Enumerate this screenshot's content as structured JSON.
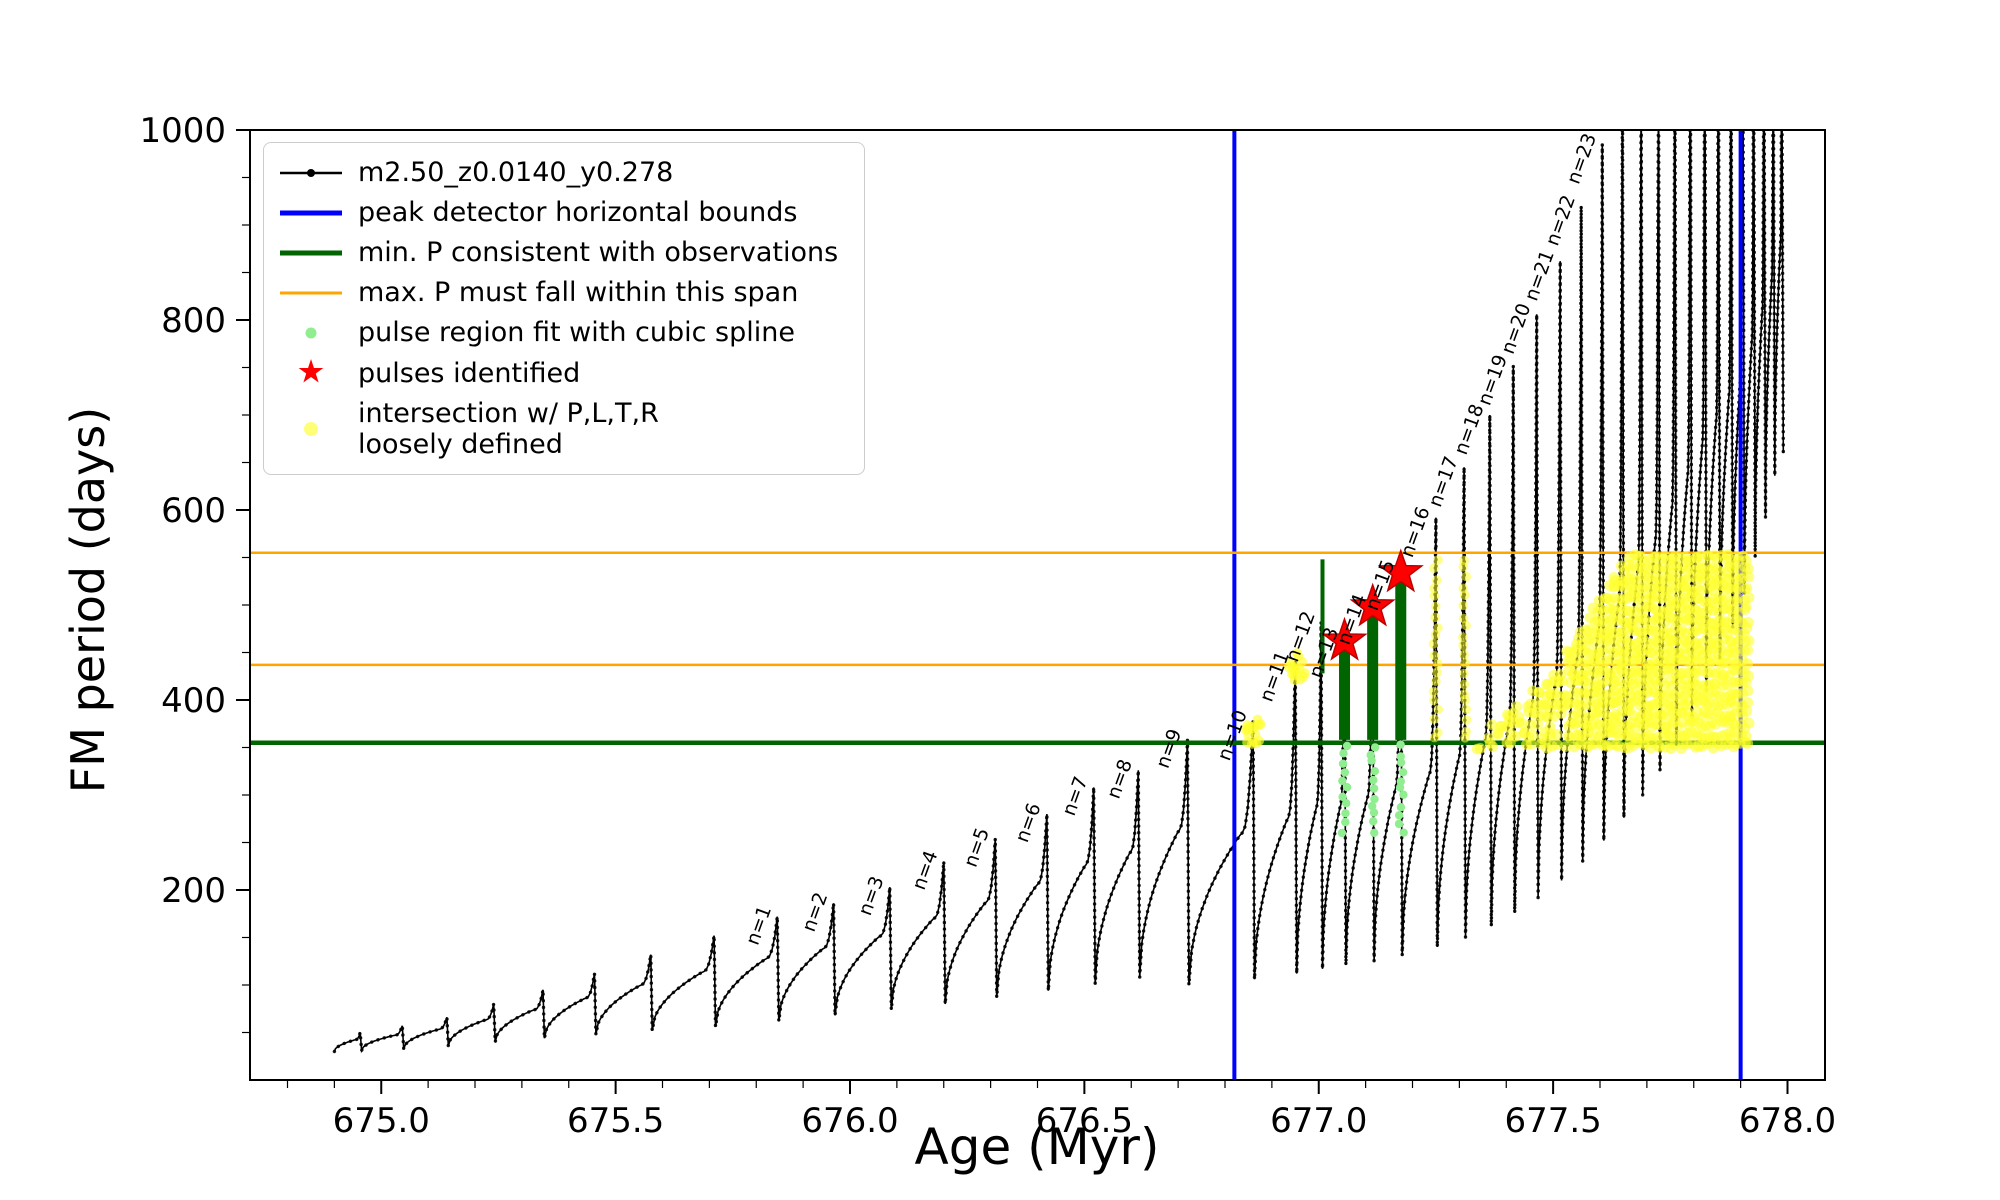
{
  "legend": {
    "entries": [
      {
        "label": "m2.50_z0.0140_y0.278",
        "marker": "line-dot",
        "color": "#000000"
      },
      {
        "label": "peak detector horizontal bounds",
        "marker": "line",
        "color": "#0000ff"
      },
      {
        "label": "min. P consistent with observations",
        "marker": "line",
        "color": "#006400"
      },
      {
        "label": "max. P must fall within this span",
        "marker": "line",
        "color": "#ffa500"
      },
      {
        "label": "pulse region fit with cubic spline",
        "marker": "dot",
        "color": "#90ee90"
      },
      {
        "label": "pulses identified",
        "marker": "star",
        "color": "#ff0000"
      },
      {
        "label": "intersection w/ P,L,T,R",
        "label2": "loosely defined",
        "marker": "dot",
        "color": "#ffff55"
      }
    ]
  },
  "chart_data": {
    "type": "line",
    "title": "",
    "xlabel": "Age (Myr)",
    "ylabel": "FM period (days)",
    "xlim": [
      674.72,
      678.08
    ],
    "ylim": [
      0,
      1000
    ],
    "grid": false,
    "legend_position": "upper left",
    "xticks": [
      {
        "v": 675.0,
        "label": "675.0"
      },
      {
        "v": 675.5,
        "label": "675.5"
      },
      {
        "v": 676.0,
        "label": "676.0"
      },
      {
        "v": 676.5,
        "label": "676.5"
      },
      {
        "v": 677.0,
        "label": "677.0"
      },
      {
        "v": 677.5,
        "label": "677.5"
      },
      {
        "v": 678.0,
        "label": "678.0"
      }
    ],
    "yticks": [
      {
        "v": 200,
        "label": "200"
      },
      {
        "v": 400,
        "label": "400"
      },
      {
        "v": 600,
        "label": "600"
      },
      {
        "v": 800,
        "label": "800"
      },
      {
        "v": 1000,
        "label": "1000"
      }
    ],
    "x_minor_step": 0.1,
    "y_minor_step": 50,
    "series": {
      "label": "m2.50_z0.0140_y0.278",
      "color": "#000000",
      "x_start": 674.9,
      "cycles": [
        {
          "x": 674.955,
          "peak": 50,
          "trough": 30
        },
        {
          "x": 675.045,
          "peak": 57,
          "trough": 31
        },
        {
          "x": 675.14,
          "peak": 66,
          "trough": 33
        },
        {
          "x": 675.24,
          "peak": 80,
          "trough": 36
        },
        {
          "x": 675.345,
          "peak": 95,
          "trough": 40
        },
        {
          "x": 675.455,
          "peak": 112,
          "trough": 44
        },
        {
          "x": 675.575,
          "peak": 132,
          "trough": 48
        },
        {
          "x": 675.71,
          "peak": 152,
          "trough": 52
        },
        {
          "x": 675.845,
          "peak": 172,
          "trough": 56,
          "n": 1
        },
        {
          "x": 675.965,
          "peak": 186,
          "trough": 62,
          "n": 2
        },
        {
          "x": 676.085,
          "peak": 203,
          "trough": 68,
          "n": 3
        },
        {
          "x": 676.2,
          "peak": 230,
          "trough": 74,
          "n": 4
        },
        {
          "x": 676.31,
          "peak": 254,
          "trough": 80,
          "n": 5
        },
        {
          "x": 676.42,
          "peak": 280,
          "trough": 87,
          "n": 6
        },
        {
          "x": 676.52,
          "peak": 308,
          "trough": 94,
          "n": 7
        },
        {
          "x": 676.615,
          "peak": 326,
          "trough": 101,
          "n": 8
        },
        {
          "x": 676.72,
          "peak": 358,
          "trough": 108,
          "n": 9
        },
        {
          "x": 676.86,
          "peak": 378,
          "trough": 100,
          "n": 10
        },
        {
          "x": 676.95,
          "peak": 440,
          "trough": 106,
          "n": 11
        },
        {
          "x": 677.005,
          "peak": 482,
          "trough": 112,
          "n": 12
        },
        {
          "x": 677.055,
          "peak": 465,
          "trough": 117,
          "n": 13
        },
        {
          "x": 677.115,
          "peak": 500,
          "trough": 121,
          "n": 14
        },
        {
          "x": 677.175,
          "peak": 536,
          "trough": 125,
          "n": 15
        },
        {
          "x": 677.25,
          "peak": 592,
          "trough": 131,
          "n": 16
        },
        {
          "x": 677.31,
          "peak": 645,
          "trough": 140,
          "n": 17
        },
        {
          "x": 677.365,
          "peak": 700,
          "trough": 150,
          "n": 18
        },
        {
          "x": 677.415,
          "peak": 752,
          "trough": 162,
          "n": 19
        },
        {
          "x": 677.465,
          "peak": 806,
          "trough": 176,
          "n": 20
        },
        {
          "x": 677.515,
          "peak": 862,
          "trough": 192,
          "n": 21
        },
        {
          "x": 677.56,
          "peak": 920,
          "trough": 210,
          "n": 22
        },
        {
          "x": 677.605,
          "peak": 985,
          "trough": 230,
          "n": 23
        },
        {
          "x": 677.648,
          "peak": 1060,
          "trough": 252
        },
        {
          "x": 677.688,
          "peak": 1130,
          "trough": 276
        },
        {
          "x": 677.725,
          "peak": 1200,
          "trough": 300
        },
        {
          "x": 677.76,
          "peak": 1270,
          "trough": 326
        },
        {
          "x": 677.793,
          "peak": 1340,
          "trough": 352
        },
        {
          "x": 677.824,
          "peak": 1400,
          "trough": 380
        },
        {
          "x": 677.853,
          "peak": 1400,
          "trough": 410
        },
        {
          "x": 677.88,
          "peak": 1400,
          "trough": 442
        },
        {
          "x": 677.905,
          "peak": 1400,
          "trough": 476
        },
        {
          "x": 677.928,
          "peak": 1400,
          "trough": 512
        },
        {
          "x": 677.95,
          "peak": 1400,
          "trough": 550
        },
        {
          "x": 677.97,
          "peak": 1400,
          "trough": 592
        },
        {
          "x": 677.988,
          "peak": 1400,
          "trough": 636
        }
      ]
    },
    "peak_detector_bounds": {
      "color": "#0000ff",
      "x_values": [
        676.82,
        677.9
      ]
    },
    "min_P_line": {
      "color": "#006400",
      "y": 355
    },
    "max_P_span": {
      "color": "#ffa500",
      "y_values": [
        437,
        555
      ]
    },
    "pulse_fit": {
      "dot_color": "#90ee90",
      "bar_color": "#006400",
      "columns": [
        {
          "x": 677.055,
          "dots_y": [
            262,
            358
          ],
          "bar_y": [
            358,
            452
          ]
        },
        {
          "x": 677.115,
          "dots_y": [
            262,
            358
          ],
          "bar_y": [
            358,
            488
          ]
        },
        {
          "x": 677.175,
          "dots_y": [
            262,
            358
          ],
          "bar_y": [
            358,
            524
          ]
        }
      ],
      "spike": {
        "x": 677.008,
        "y": [
          428,
          548
        ]
      }
    },
    "pulses": {
      "color": "#ff0000",
      "points": [
        {
          "x": 677.055,
          "y": 462
        },
        {
          "x": 677.115,
          "y": 498
        },
        {
          "x": 677.175,
          "y": 534
        }
      ]
    },
    "intersection": {
      "color": "#ffff2e",
      "blobs": [
        {
          "x": 676.862,
          "y": 366
        },
        {
          "x": 676.952,
          "y": 436
        }
      ],
      "strips": [
        {
          "x": 677.25,
          "y": [
            358,
            548
          ]
        },
        {
          "x": 677.31,
          "y": [
            358,
            548
          ]
        }
      ],
      "wedge": {
        "top": [
          [
            677.33,
            372
          ],
          [
            677.4,
            388
          ],
          [
            677.46,
            410
          ],
          [
            677.51,
            436
          ],
          [
            677.55,
            466
          ],
          [
            677.59,
            500
          ],
          [
            677.63,
            532
          ],
          [
            677.665,
            553
          ],
          [
            677.92,
            553
          ]
        ],
        "bottom": 352
      }
    }
  }
}
